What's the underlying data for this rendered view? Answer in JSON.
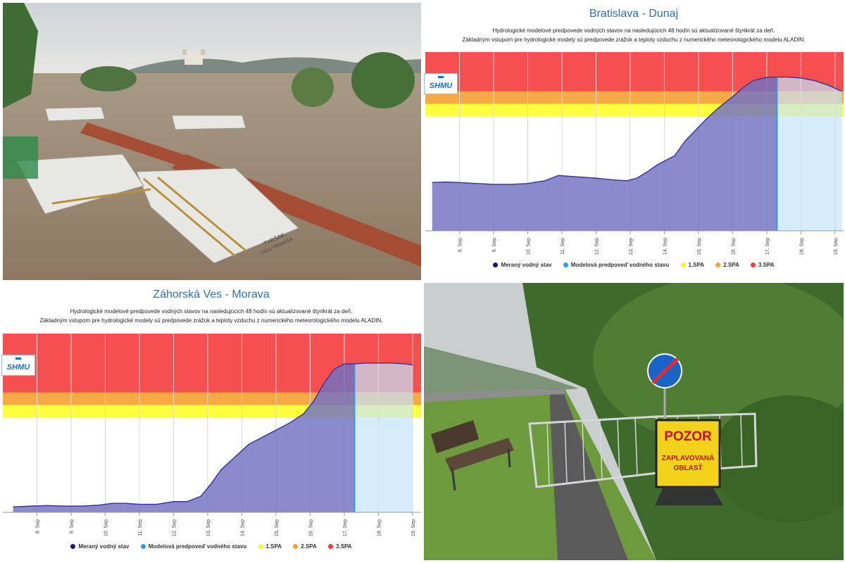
{
  "photo_flood": {
    "boat_sign": "TYRŠÁK",
    "boat_sign_2": "VÁNI PRINÁŠA"
  },
  "charts_text": {
    "subtitle_line1": "Hydrologické modelové predpovede vodných stavov na nasledujúcich 48 hodín sú aktualizované štyrikrát za deň.",
    "subtitle_line2": "Základným vstupom pre hydrologické modely sú predpovede zrážok a teploty vzduchu z numerického meteorologického modelu ALADIN.",
    "logo": "SHMU"
  },
  "legend": [
    {
      "label": "Meraný vodný stav",
      "color": "#151577"
    },
    {
      "label": "Modelová predpoveď vodného stavu",
      "color": "#2e9be8"
    },
    {
      "label": "1.SPA",
      "color": "#f5f536"
    },
    {
      "label": "2.SPA",
      "color": "#f2a33a"
    },
    {
      "label": "3.SPA",
      "color": "#ee3d3d"
    }
  ],
  "colors": {
    "measured_fill": "#7070c2",
    "measured_line": "#3a3a9a",
    "forecast_fill": "#c6e4f8",
    "forecast_line": "#2e9be8",
    "spa1": "#ffff33",
    "spa2": "#f5a53c",
    "spa3": "#f54646",
    "title": "#2f6fb4"
  },
  "chart_data": [
    {
      "type": "area",
      "title": "Bratislava - Dunaj",
      "x_ticks": [
        "8. Sep",
        "9. Sep",
        "10. Sep",
        "11. Sep",
        "12. Sep",
        "13. Sep",
        "14. Sep",
        "15. Sep",
        "16. Sep",
        "17. Sep",
        "18. Sep",
        "19. Sep"
      ],
      "forecast_start": 17.3,
      "ylim": [
        0,
        100
      ],
      "spa_bands": {
        "spa1": [
          64,
          71
        ],
        "spa2": [
          71,
          78
        ],
        "spa3": [
          78,
          100
        ]
      },
      "measured": {
        "x": [
          7.2,
          7.6,
          8.0,
          8.5,
          9.0,
          9.5,
          10.0,
          10.5,
          10.9,
          11.2,
          11.6,
          12.0,
          12.5,
          12.9,
          13.2,
          13.5,
          13.8,
          14.0,
          14.3,
          14.6,
          14.9,
          15.2,
          15.6,
          16.0,
          16.3,
          16.6,
          16.9,
          17.1,
          17.3
        ],
        "y": [
          27,
          27.3,
          27,
          26.5,
          26,
          26,
          26.5,
          28,
          31,
          30.5,
          30,
          29.5,
          28.5,
          28,
          29.5,
          33,
          37,
          39,
          42,
          50,
          56,
          62,
          69,
          75,
          80,
          84,
          85.5,
          86,
          86
        ]
      },
      "forecast": {
        "x": [
          17.3,
          17.6,
          18.0,
          18.4,
          18.8,
          19.2
        ],
        "y": [
          86,
          86,
          85.5,
          84,
          81.5,
          78
        ]
      }
    },
    {
      "type": "area",
      "title": "Záhorská Ves - Morava",
      "x_ticks": [
        "8. Sep",
        "9. Sep",
        "10. Sep",
        "11. Sep",
        "12. Sep",
        "13. Sep",
        "14. Sep",
        "15. Sep",
        "16. Sep",
        "17. Sep",
        "18. Sep",
        "19. Sep"
      ],
      "forecast_start": 17.3,
      "ylim": [
        0,
        100
      ],
      "spa_bands": {
        "spa1": [
          53,
          60
        ],
        "spa2": [
          60,
          67
        ],
        "spa3": [
          67,
          100
        ]
      },
      "measured": {
        "x": [
          7.3,
          7.8,
          8.3,
          8.8,
          9.3,
          9.8,
          10.2,
          10.6,
          11.0,
          11.5,
          12.0,
          12.4,
          12.8,
          13.1,
          13.4,
          13.8,
          14.2,
          14.6,
          15.0,
          15.4,
          15.8,
          16.1,
          16.4,
          16.7,
          17.0,
          17.3
        ],
        "y": [
          3,
          3.5,
          3.8,
          3.5,
          3.5,
          4,
          5,
          5,
          4.5,
          4.5,
          6,
          6,
          9,
          16,
          24,
          31,
          38,
          42,
          46,
          50,
          55,
          62,
          72,
          80,
          83,
          83
        ]
      },
      "forecast": {
        "x": [
          17.3,
          17.6,
          18.0,
          18.4,
          18.8,
          19.0
        ],
        "y": [
          83,
          83.5,
          83.5,
          83.5,
          83,
          82.5
        ]
      }
    }
  ],
  "road_sign": {
    "line1": "POZOR",
    "line2": "ZAPLAVOVANÁ",
    "line3": "OBLASŤ"
  }
}
